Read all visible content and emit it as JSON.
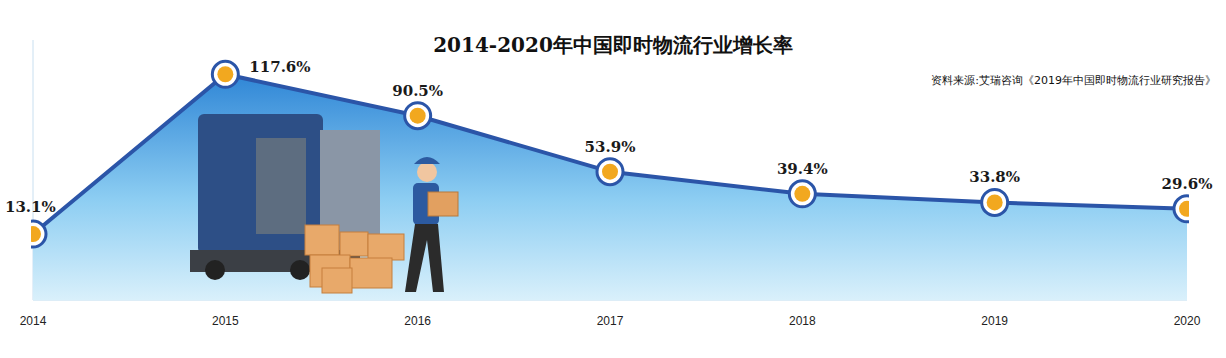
{
  "chart_data": {
    "type": "area",
    "title": "2014-2020年中国即时物流行业增长率",
    "subtitle": "资料来源:艾瑞咨询《2019年中国即时物流行业研究报告》",
    "categories": [
      "2014",
      "2015",
      "2016",
      "2017",
      "2018",
      "2019",
      "2020"
    ],
    "values": [
      13.1,
      117.6,
      90.5,
      53.9,
      39.4,
      33.8,
      29.6
    ],
    "value_labels": [
      "13.1%",
      "117.6%",
      "90.5%",
      "53.9%",
      "39.4%",
      "33.8%",
      "29.6%"
    ],
    "color": "#2b55a8",
    "ylim": [
      -30,
      140
    ],
    "data_labels": true,
    "tick_labels": "x",
    "grid": false,
    "marker": "circle"
  }
}
